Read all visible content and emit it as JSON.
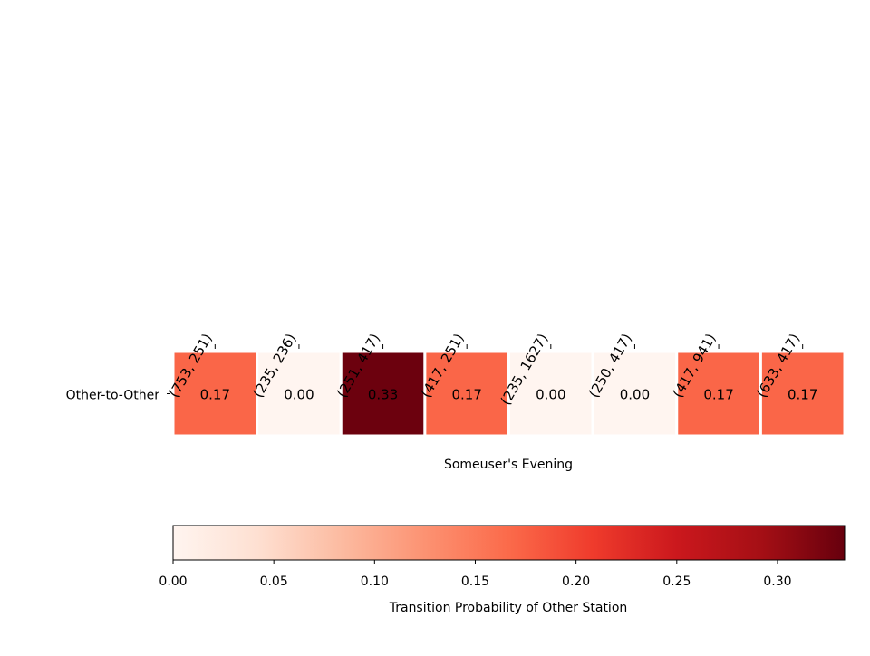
{
  "chart_data": {
    "type": "heatmap",
    "title": "",
    "xlabel": "Someuser's Evening",
    "ylabel": "",
    "rows": [
      "Other-to-Other"
    ],
    "columns": [
      "(753, 251)",
      "(235, 236)",
      "(251, 417)",
      "(417, 251)",
      "(235, 1627)",
      "(250, 417)",
      "(417, 941)",
      "(633, 417)"
    ],
    "values": [
      [
        0.17,
        0.0,
        0.33,
        0.17,
        0.0,
        0.0,
        0.17,
        0.17
      ]
    ],
    "value_labels": [
      "0.17",
      "0.00",
      "0.33",
      "0.17",
      "0.00",
      "0.00",
      "0.17",
      "0.17"
    ],
    "colormap": "Reds",
    "colorbar": {
      "label": "Transition Probability of Other Station",
      "range": [
        0,
        0.3333
      ],
      "ticks": [
        "0.00",
        "0.05",
        "0.10",
        "0.15",
        "0.20",
        "0.25",
        "0.30"
      ],
      "orientation": "horizontal",
      "placement": "bottom"
    },
    "x_tick_position": "top",
    "grid": false
  }
}
